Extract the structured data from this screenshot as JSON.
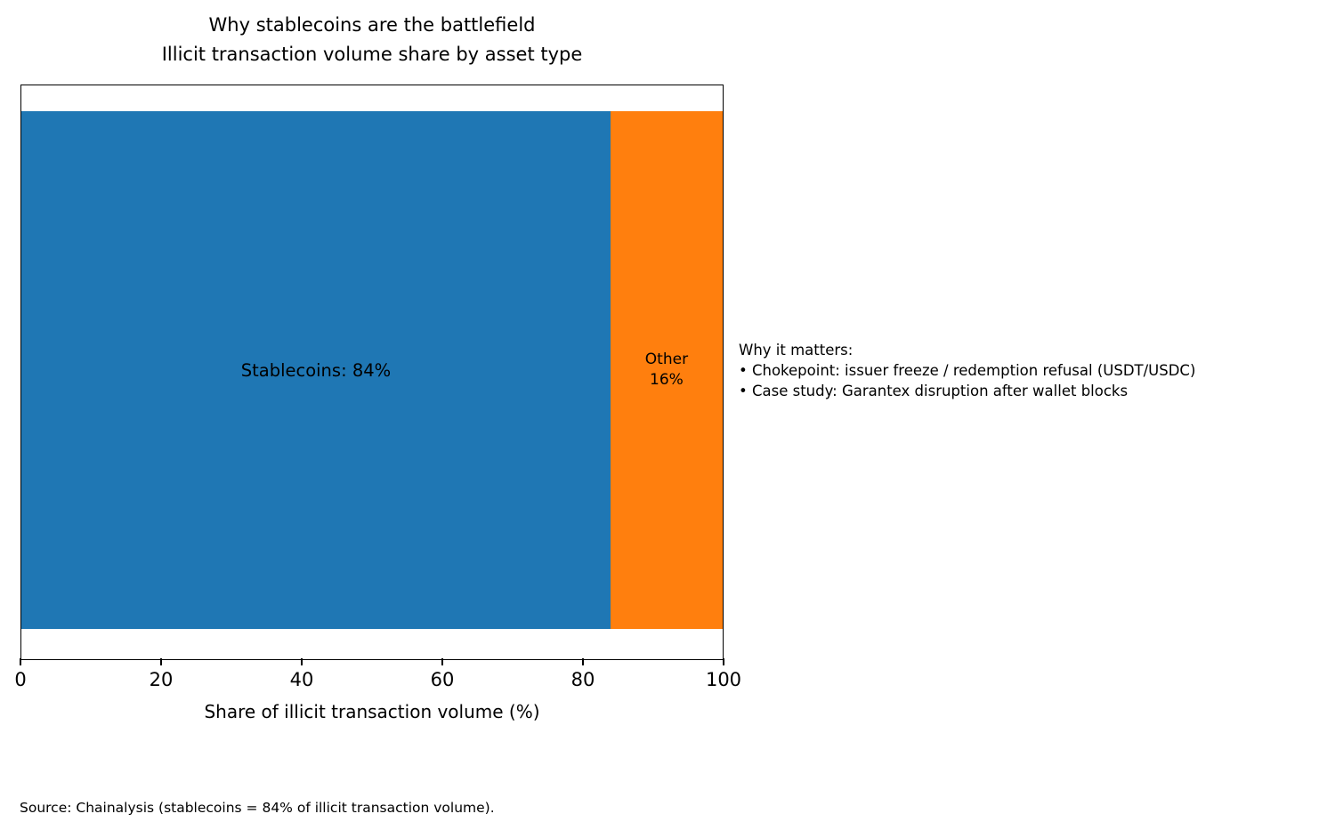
{
  "title": {
    "line1": "Why stablecoins are the battlefield",
    "line2": "Illicit transaction volume share by asset type"
  },
  "chart_data": {
    "type": "bar",
    "orientation": "horizontal-stacked",
    "categories": [
      "Illicit transaction volume"
    ],
    "series": [
      {
        "name": "Stablecoins",
        "value": 84,
        "label": "Stablecoins: 84%",
        "color": "#1f77b4"
      },
      {
        "name": "Other",
        "value": 16,
        "label_line1": "Other",
        "label_line2": "16%",
        "color": "#ff7f0e"
      }
    ],
    "title": "Why stablecoins are the battlefield\nIllicit transaction volume share by asset type",
    "xlabel": "Share of illicit transaction volume (%)",
    "ylabel": "",
    "xlim": [
      0,
      100
    ],
    "xticks": [
      "0",
      "20",
      "40",
      "60",
      "80",
      "100"
    ],
    "xtick_values": [
      0,
      20,
      40,
      60,
      80,
      100
    ],
    "grid": false,
    "legend": "none"
  },
  "annotation": {
    "heading": "Why it matters:",
    "bullets": [
      "• Chokepoint: issuer freeze / redemption refusal (USDT/USDC)",
      "• Case study: Garantex disruption after wallet blocks"
    ]
  },
  "source": "Source: Chainalysis (stablecoins = 84% of illicit transaction volume)."
}
